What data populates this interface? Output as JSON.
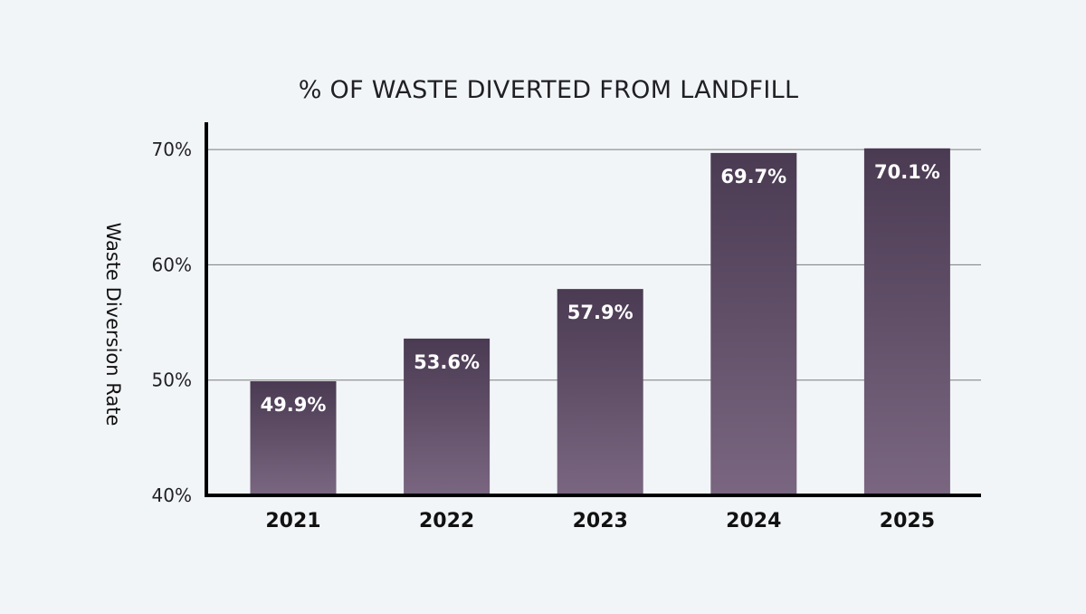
{
  "chart_data": {
    "type": "bar",
    "title": "% OF WASTE DIVERTED FROM LANDFILL",
    "xlabel": "",
    "ylabel": "Waste Diversion Rate",
    "categories": [
      "2021",
      "2022",
      "2023",
      "2024",
      "2025"
    ],
    "values": [
      49.9,
      53.6,
      57.9,
      69.7,
      70.1
    ],
    "value_labels": [
      "49.9%",
      "53.6%",
      "57.9%",
      "69.7%",
      "70.1%"
    ],
    "ylim": [
      40,
      72
    ],
    "yticks": [
      40,
      50,
      60,
      70
    ],
    "ytick_labels": [
      "40%",
      "50%",
      "60%",
      "70%"
    ],
    "grid": true,
    "legend": "none",
    "colors": {
      "background": "#f2f5f8",
      "bar_top": "#4a3a52",
      "bar_bottom": "#7a6680",
      "bar_label": "#ffffff"
    }
  }
}
